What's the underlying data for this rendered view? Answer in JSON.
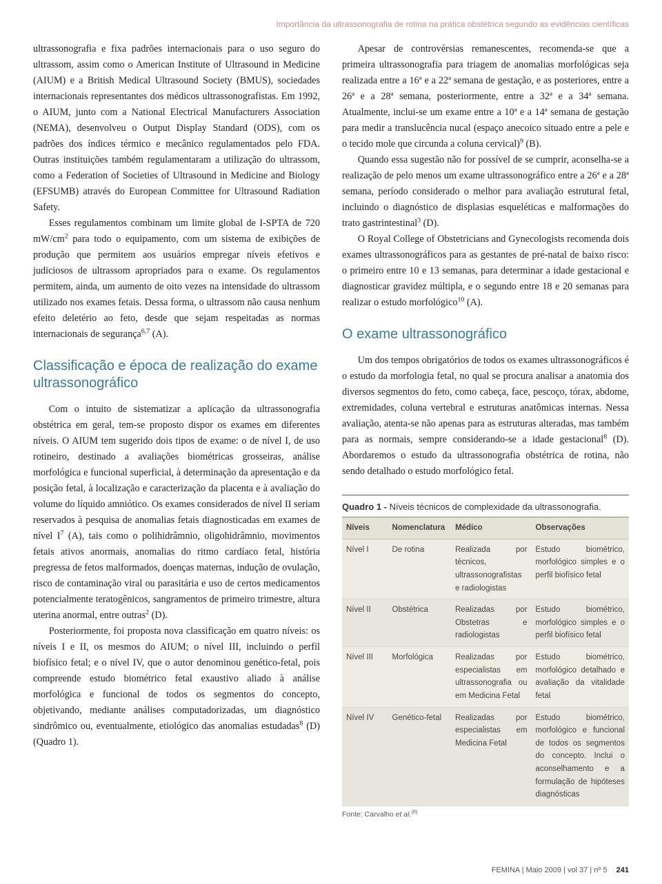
{
  "runningHead": "Importância da ultrassonografia de rotina na prática obstétrica segundo as evidências científicas",
  "colors": {
    "headerText": "#c98f8a",
    "sectionHeading": "#3a7a9c",
    "bodyText": "#222222",
    "tableHeaderBg": "#e4e1d7",
    "tableRowBg": "#eeece3",
    "tableRowAltBg": "#e8e6dc",
    "tableBorder": "#8a8a7a",
    "pageBg": "#ffffff"
  },
  "left": {
    "para1": "ultrassonografia e fixa padrões internacionais para o uso seguro do ultrassom, assim como o American Institute of Ultrasound in Medicine (AIUM) e a British Medical Ultrasound Society (BMUS), sociedades internacionais representantes dos médicos ultrassonografistas. Em 1992, o AIUM, junto com a National Electrical Manufacturers Association (NEMA), desenvolveu o Output Display Standard (ODS), com os padrões dos índices térmico e mecânico regulamentados pelo FDA. Outras instituições também regulamentaram a utilização do ultrassom, como a Federation of Societies of Ultrasound in Medicine and Biology (EFSUMB) através do European Committee for Ultrasound Radiation Safety.",
    "para2_a": "Esses regulamentos combinam um limite global de I-SPTA de 720 mW/cm",
    "para2_b": " para todo o equipamento, com um sistema de exibições de produção que permitem aos usuários empregar níveis efetivos e judiciosos de ultrassom apropriados para o exame. Os regulamentos permitem, ainda, um aumento de oito vezes na intensidade do ultrassom utilizado nos exames fetais. Dessa forma, o ultrassom não causa nenhum efeito deletério ao feto, desde que sejam respeitadas as normas internacionais de segurança",
    "para2_ref": "6,7",
    "para2_grade": " (A).",
    "heading1": "Classificação e época de realização do exame ultrassonográfico",
    "para3_a": "Com o intuito de sistematizar a aplicação da ultrassonografia obstétrica em geral, tem-se proposto dispor os exames em diferentes níveis. O AIUM tem sugerido dois tipos de exame: o de nível I, de uso rotineiro, destinado a avaliações biométricas grosseiras, análise morfológica e funcional superficial, à determinação da apresentação e da posição fetal, à localização e caracterização da placenta e à avaliação do volume do líquido amniótico. Os exames considerados de nível II seriam reservados à pesquisa de anomalias fetais diagnosticadas em exames de nível I",
    "para3_ref1": "7",
    "para3_b": " (A), tais como o polihidrâmnio, oligohidrâmnio, movimentos fetais ativos anormais, anomalias do ritmo cardíaco fetal, história pregressa de fetos malformados, doenças maternas, indução de ovulação, risco de contaminação viral ou parasitária e uso de certos medicamentos potencialmente teratogênicos, sangramentos de primeiro trimestre, altura uterina anormal, entre outras",
    "para3_ref2": "2",
    "para3_c": " (D).",
    "para4_a": "Posteriormente, foi proposta nova classificação em quatro níveis: os níveis I e II, os mesmos do AIUM; o nível III, incluindo o perfil biofísico fetal; e o nível IV, que o autor denominou genético-fetal, pois compreende estudo biométrico fetal exaustivo aliado à análise morfológica e funcional de todos os segmentos do concepto, objetivando, mediante análises computadorizadas, um diagnóstico sindrômico ou, eventualmente, etiológico das anomalias estudadas",
    "para4_ref": "8",
    "para4_b": " (D) (Quadro 1)."
  },
  "right": {
    "para1_a": "Apesar de controvérsias remanescentes, recomenda-se que a primeira ultrassonografia para triagem de anomalias morfológicas seja realizada entre a 16ª e a 22ª semana de gestação, e as posteriores, entre a 26ª e a 28ª semana, posteriormente, entre a 32ª e a 34ª semana. Atualmente, inclui-se um exame entre a 10ª e a 14ª semana de gestação para medir a translucência nucal (espaço anecoico situado entre a pele e o tecido mole que circunda a coluna cervical)",
    "para1_ref": "9",
    "para1_b": " (B).",
    "para2_a": "Quando essa sugestão não for possível de se cumprir, aconselha-se a realização de pelo menos um exame ultrassonográfico entre a 26ª e a 28ª semana, período considerado o melhor para avaliação estrutural fetal, incluindo o diagnóstico de displasias esqueléticas e malformações do trato gastrintestinal",
    "para2_ref": "3",
    "para2_b": " (D).",
    "para3_a": "O Royal College of Obstetricians and Gynecologists recomenda dois exames ultrassonográficos para as gestantes de pré-natal de baixo risco: o primeiro entre 10 e 13 semanas, para determinar a idade gestacional e diagnosticar gravidez múltipla, e o segundo entre 18 e 20 semanas para realizar o estudo morfológico",
    "para3_ref": "10",
    "para3_b": " (A).",
    "heading2": "O exame ultrassonográfico",
    "para4_a": "Um dos tempos obrigatórios de todos os exames ultrassonográficos é o estudo da morfologia fetal, no qual se procura analisar a anatomia dos diversos segmentos do feto, como cabeça, face, pescoço, tórax, abdome, extremidades, coluna vertebral e estruturas anatômicas internas. Nessa avaliação, atenta-se não apenas para as estruturas alteradas, mas também para as normais, sempre considerando-se a idade gestacional",
    "para4_ref": "8",
    "para4_b": " (D). Abordaremos o estudo da ultrassonografia obstétrica de rotina, não sendo detalhado o estudo morfológico fetal."
  },
  "quadro": {
    "title_bold": "Quadro 1 - ",
    "title_rest": "Níveis técnicos de complexidade da ultrassonografia.",
    "columns": [
      "Níveis",
      "Nomenclatura",
      "Médico",
      "Observações"
    ],
    "colWidths": [
      "16%",
      "22%",
      "28%",
      "34%"
    ],
    "rows": [
      [
        "Nível I",
        "De rotina",
        "Realizada por técnicos, ultrassonografistas e radiologistas",
        "Estudo biométrico, morfológico simples e o perfil biofísico fetal"
      ],
      [
        "Nível II",
        "Obstétrica",
        "Realizadas por Obstetras e radiologistas",
        "Estudo biométrico, morfológico simples e o perfil biofísico fetal"
      ],
      [
        "Nível III",
        "Morfológica",
        "Realizadas por especialistas em ultrassonografia ou em Medicina Fetal",
        "Estudo biométrico, morfológico detalhado e avaliação da vitalidade fetal"
      ],
      [
        "Nível IV",
        "Genético-fetal",
        "Realizadas por especialistas em Medicina Fetal",
        "Estudo biométrico, morfológico e funcional de todos os segmentos do concepto. Inclui o aconselhamento e a formulação de hipóteses diagnósticas"
      ]
    ],
    "footnote_a": "Fonte: Carvalho ",
    "footnote_it": "et al.",
    "footnote_ref": "(8)"
  },
  "footer": {
    "journal": "FEMINA | Maio 2009 | vol 37 | nº 5",
    "page": "241"
  }
}
